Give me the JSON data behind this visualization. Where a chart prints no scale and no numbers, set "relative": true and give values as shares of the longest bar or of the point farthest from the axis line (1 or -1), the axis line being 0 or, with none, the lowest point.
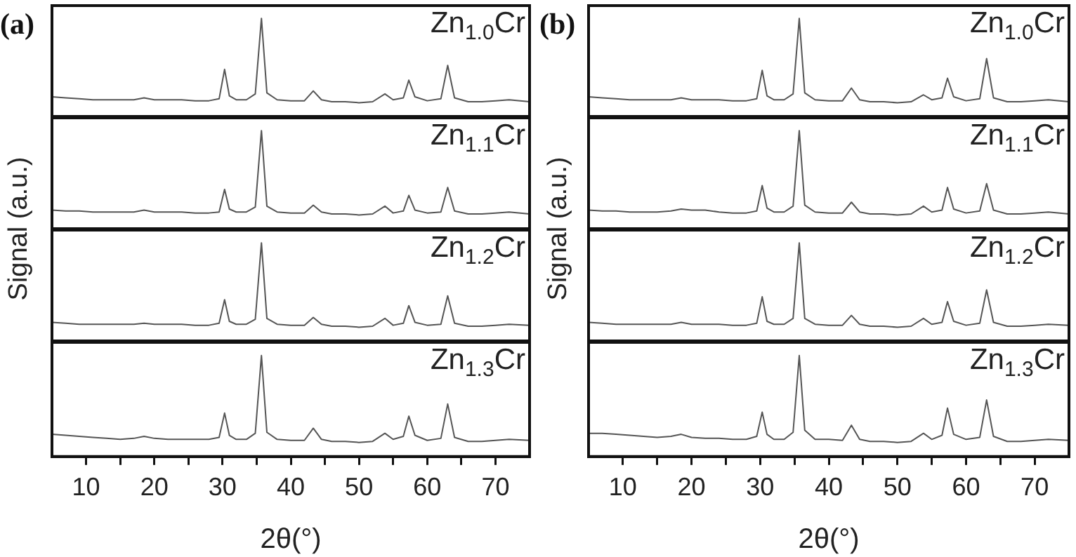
{
  "chart_data": [
    {
      "type": "line",
      "relative": true,
      "annotations": [
        "(a)"
      ],
      "ylabel": "Signal (a.u.)",
      "xlim": [
        5,
        75
      ],
      "tick_labels": false,
      "x": [
        5,
        7,
        9,
        11,
        13,
        15,
        17,
        18.5,
        20,
        22,
        24,
        26,
        28,
        29.5,
        30.3,
        31,
        32,
        33.5,
        34.8,
        35.7,
        36.5,
        38,
        40,
        42,
        43.3,
        44.5,
        46,
        48,
        50,
        52,
        53.8,
        55,
        56.5,
        57.3,
        58.2,
        60,
        62,
        63,
        64,
        66,
        68,
        70,
        72,
        75
      ],
      "series": [
        {
          "name": "Zn$_{1.0}$Cr",
          "color": "#555555",
          "values": [
            0.2,
            0.19,
            0.18,
            0.17,
            0.17,
            0.17,
            0.17,
            0.19,
            0.17,
            0.17,
            0.17,
            0.16,
            0.16,
            0.18,
            0.48,
            0.21,
            0.17,
            0.17,
            0.23,
            1,
            0.24,
            0.17,
            0.16,
            0.16,
            0.26,
            0.17,
            0.15,
            0.15,
            0.14,
            0.15,
            0.23,
            0.17,
            0.19,
            0.37,
            0.2,
            0.16,
            0.18,
            0.52,
            0.19,
            0.15,
            0.15,
            0.16,
            0.17,
            0.15
          ]
        }
      ]
    },
    {
      "type": "line",
      "relative": true,
      "xlim": [
        5,
        75
      ],
      "tick_labels": false,
      "x": [
        5,
        7,
        9,
        11,
        13,
        15,
        17,
        18.5,
        20,
        22,
        24,
        26,
        28,
        29.5,
        30.3,
        31,
        32,
        33.5,
        34.8,
        35.7,
        36.5,
        38,
        40,
        42,
        43.3,
        44.5,
        46,
        48,
        50,
        52,
        53.8,
        55,
        56.5,
        57.3,
        58.2,
        60,
        62,
        63,
        64,
        66,
        68,
        70,
        72,
        75
      ],
      "series": [
        {
          "name": "Zn$_{1.1}$Cr",
          "color": "#555555",
          "values": [
            0.19,
            0.18,
            0.18,
            0.17,
            0.17,
            0.17,
            0.17,
            0.19,
            0.17,
            0.17,
            0.17,
            0.16,
            0.16,
            0.17,
            0.4,
            0.2,
            0.17,
            0.17,
            0.22,
            1,
            0.23,
            0.17,
            0.16,
            0.16,
            0.24,
            0.17,
            0.15,
            0.15,
            0.14,
            0.15,
            0.23,
            0.16,
            0.18,
            0.34,
            0.19,
            0.16,
            0.17,
            0.42,
            0.18,
            0.15,
            0.15,
            0.16,
            0.17,
            0.15
          ]
        }
      ]
    },
    {
      "type": "line",
      "relative": true,
      "xlim": [
        5,
        75
      ],
      "tick_labels": false,
      "x": [
        5,
        7,
        9,
        11,
        13,
        15,
        17,
        18.5,
        20,
        22,
        24,
        26,
        28,
        29.5,
        30.3,
        31,
        32,
        33.5,
        34.8,
        35.7,
        36.5,
        38,
        40,
        42,
        43.3,
        44.5,
        46,
        48,
        50,
        52,
        53.8,
        55,
        56.5,
        57.3,
        58.2,
        60,
        62,
        63,
        64,
        66,
        68,
        70,
        72,
        75
      ],
      "series": [
        {
          "name": "Zn$_{1.2}$Cr",
          "color": "#555555",
          "values": [
            0.19,
            0.18,
            0.17,
            0.17,
            0.17,
            0.17,
            0.17,
            0.18,
            0.17,
            0.17,
            0.17,
            0.16,
            0.16,
            0.18,
            0.42,
            0.2,
            0.17,
            0.17,
            0.22,
            1,
            0.23,
            0.17,
            0.16,
            0.16,
            0.24,
            0.17,
            0.15,
            0.15,
            0.14,
            0.15,
            0.23,
            0.16,
            0.18,
            0.36,
            0.19,
            0.16,
            0.17,
            0.46,
            0.18,
            0.15,
            0.15,
            0.16,
            0.17,
            0.16
          ]
        }
      ]
    },
    {
      "type": "line",
      "relative": true,
      "xlabel": "2θ(°)",
      "xlim": [
        5,
        75
      ],
      "tick_labels": "x",
      "xticks": [
        10,
        {
          "value": 15,
          "label": null
        },
        20,
        {
          "value": 25,
          "label": null
        },
        30,
        {
          "value": 35,
          "label": null
        },
        40,
        {
          "value": 45,
          "label": null
        },
        50,
        {
          "value": 55,
          "label": null
        },
        60,
        {
          "value": 65,
          "label": null
        },
        70
      ],
      "x": [
        5,
        7,
        9,
        11,
        13,
        15,
        17,
        18.5,
        20,
        22,
        24,
        26,
        28,
        29.5,
        30.3,
        31,
        32,
        33.5,
        34.8,
        35.7,
        36.5,
        38,
        40,
        42,
        43.3,
        44.5,
        46,
        48,
        50,
        52,
        53.8,
        55,
        56.5,
        57.3,
        58.2,
        60,
        62,
        63,
        64,
        66,
        68,
        70,
        72,
        75
      ],
      "series": [
        {
          "name": "Zn$_{1.3}$Cr",
          "color": "#555555",
          "values": [
            0.22,
            0.21,
            0.2,
            0.19,
            0.18,
            0.17,
            0.18,
            0.2,
            0.18,
            0.17,
            0.17,
            0.17,
            0.17,
            0.19,
            0.43,
            0.21,
            0.17,
            0.17,
            0.23,
            1,
            0.24,
            0.17,
            0.16,
            0.16,
            0.28,
            0.17,
            0.15,
            0.15,
            0.14,
            0.15,
            0.23,
            0.17,
            0.2,
            0.4,
            0.21,
            0.16,
            0.18,
            0.52,
            0.19,
            0.15,
            0.15,
            0.16,
            0.17,
            0.16
          ]
        }
      ]
    },
    {
      "type": "line",
      "relative": true,
      "annotations": [
        "(b)"
      ],
      "ylabel": "Signal (a.u.)",
      "xlim": [
        5,
        75
      ],
      "tick_labels": false,
      "x": [
        5,
        7,
        9,
        11,
        13,
        15,
        17,
        18.5,
        20,
        22,
        24,
        26,
        28,
        29.5,
        30.3,
        31,
        32,
        33.5,
        34.8,
        35.7,
        36.5,
        38,
        40,
        42,
        43.3,
        44.5,
        46,
        48,
        50,
        52,
        53.8,
        55,
        56.5,
        57.3,
        58.2,
        60,
        62,
        63,
        64,
        66,
        68,
        70,
        72,
        75
      ],
      "series": [
        {
          "name": "Zn$_{1.0}$Cr",
          "color": "#555555",
          "values": [
            0.2,
            0.19,
            0.18,
            0.17,
            0.17,
            0.17,
            0.17,
            0.19,
            0.17,
            0.17,
            0.17,
            0.16,
            0.16,
            0.18,
            0.47,
            0.21,
            0.17,
            0.17,
            0.23,
            1,
            0.24,
            0.17,
            0.16,
            0.16,
            0.29,
            0.17,
            0.15,
            0.15,
            0.14,
            0.15,
            0.22,
            0.17,
            0.19,
            0.39,
            0.2,
            0.16,
            0.18,
            0.59,
            0.19,
            0.15,
            0.15,
            0.16,
            0.17,
            0.15
          ]
        }
      ]
    },
    {
      "type": "line",
      "relative": true,
      "xlim": [
        5,
        75
      ],
      "tick_labels": false,
      "x": [
        5,
        7,
        9,
        11,
        13,
        15,
        17,
        18.5,
        20,
        22,
        24,
        26,
        28,
        29.5,
        30.3,
        31,
        32,
        33.5,
        34.8,
        35.7,
        36.5,
        38,
        40,
        42,
        43.3,
        44.5,
        46,
        48,
        50,
        52,
        53.8,
        55,
        56.5,
        57.3,
        58.2,
        60,
        62,
        63,
        64,
        66,
        68,
        70,
        72,
        75
      ],
      "series": [
        {
          "name": "Zn$_{1.1}$Cr",
          "color": "#555555",
          "values": [
            0.19,
            0.18,
            0.18,
            0.17,
            0.17,
            0.17,
            0.18,
            0.2,
            0.19,
            0.19,
            0.17,
            0.16,
            0.16,
            0.18,
            0.44,
            0.21,
            0.17,
            0.17,
            0.23,
            1,
            0.24,
            0.17,
            0.16,
            0.16,
            0.27,
            0.17,
            0.15,
            0.15,
            0.14,
            0.15,
            0.23,
            0.17,
            0.19,
            0.42,
            0.2,
            0.16,
            0.18,
            0.46,
            0.19,
            0.15,
            0.15,
            0.16,
            0.17,
            0.15
          ]
        }
      ]
    },
    {
      "type": "line",
      "relative": true,
      "xlim": [
        5,
        75
      ],
      "tick_labels": false,
      "x": [
        5,
        7,
        9,
        11,
        13,
        15,
        17,
        18.5,
        20,
        22,
        24,
        26,
        28,
        29.5,
        30.3,
        31,
        32,
        33.5,
        34.8,
        35.7,
        36.5,
        38,
        40,
        42,
        43.3,
        44.5,
        46,
        48,
        50,
        52,
        53.8,
        55,
        56.5,
        57.3,
        58.2,
        60,
        62,
        63,
        64,
        66,
        68,
        70,
        72,
        75
      ],
      "series": [
        {
          "name": "Zn$_{1.2}$Cr",
          "color": "#555555",
          "values": [
            0.19,
            0.18,
            0.17,
            0.17,
            0.17,
            0.17,
            0.17,
            0.19,
            0.17,
            0.17,
            0.17,
            0.16,
            0.16,
            0.18,
            0.45,
            0.2,
            0.17,
            0.17,
            0.23,
            1,
            0.23,
            0.17,
            0.16,
            0.16,
            0.26,
            0.17,
            0.15,
            0.15,
            0.14,
            0.15,
            0.23,
            0.17,
            0.19,
            0.4,
            0.2,
            0.16,
            0.18,
            0.52,
            0.19,
            0.15,
            0.15,
            0.16,
            0.17,
            0.16
          ]
        }
      ]
    },
    {
      "type": "line",
      "relative": true,
      "xlabel": "2θ(°)",
      "xlim": [
        5,
        75
      ],
      "tick_labels": "x",
      "xticks": [
        10,
        {
          "value": 15,
          "label": null
        },
        20,
        {
          "value": 25,
          "label": null
        },
        30,
        {
          "value": 35,
          "label": null
        },
        40,
        {
          "value": 45,
          "label": null
        },
        50,
        {
          "value": 55,
          "label": null
        },
        60,
        {
          "value": 65,
          "label": null
        },
        70
      ],
      "x": [
        5,
        7,
        9,
        11,
        13,
        15,
        17,
        18.5,
        20,
        22,
        24,
        26,
        28,
        29.5,
        30.3,
        31,
        32,
        33.5,
        34.8,
        35.7,
        36.5,
        38,
        40,
        42,
        43.3,
        44.5,
        46,
        48,
        50,
        52,
        53.8,
        55,
        56.5,
        57.3,
        58.2,
        60,
        62,
        63,
        64,
        66,
        68,
        70,
        72,
        75
      ],
      "series": [
        {
          "name": "Zn$_{1.3}$Cr",
          "color": "#555555",
          "values": [
            0.23,
            0.23,
            0.22,
            0.21,
            0.2,
            0.19,
            0.2,
            0.22,
            0.19,
            0.18,
            0.18,
            0.17,
            0.17,
            0.2,
            0.44,
            0.22,
            0.17,
            0.17,
            0.24,
            1,
            0.26,
            0.17,
            0.17,
            0.16,
            0.31,
            0.17,
            0.15,
            0.15,
            0.14,
            0.15,
            0.23,
            0.17,
            0.21,
            0.48,
            0.22,
            0.17,
            0.19,
            0.56,
            0.2,
            0.15,
            0.15,
            0.16,
            0.17,
            0.16
          ]
        }
      ]
    }
  ]
}
